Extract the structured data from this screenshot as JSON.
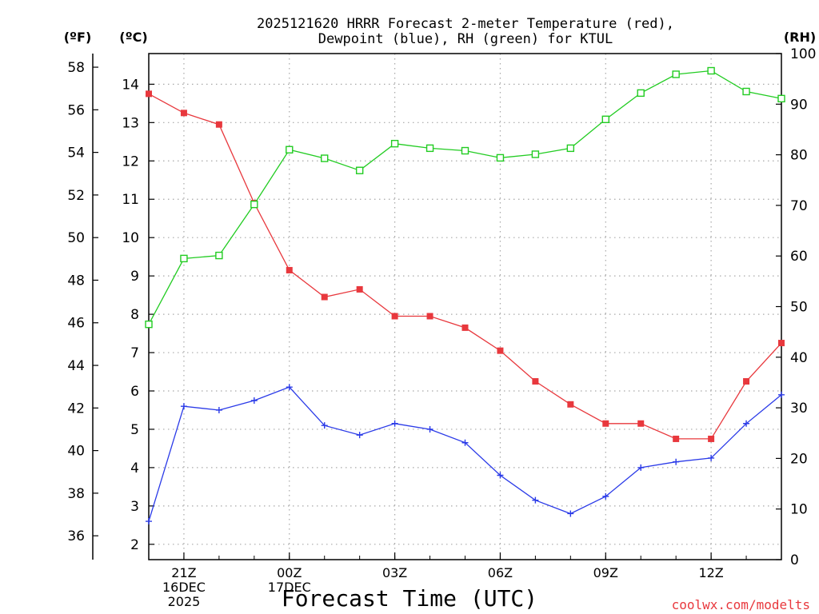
{
  "chart_data": {
    "type": "line",
    "title_line1": "2025121620 HRRR Forecast 2-meter Temperature (red),",
    "title_line2": "Dewpoint (blue), RH (green) for KTUL",
    "xlabel": "Forecast Time (UTC)",
    "credit": "coolwx.com/modelts",
    "units": {
      "fahrenheit": "(ºF)",
      "celsius": "(ºC)",
      "rh": "(RH)"
    },
    "x": [
      20,
      21,
      22,
      23,
      24,
      25,
      26,
      27,
      28,
      29,
      30,
      31,
      32,
      33,
      34,
      35,
      36,
      37,
      38
    ],
    "xlim": [
      20,
      38
    ],
    "x_ticks": [
      {
        "x": 21,
        "lines": [
          "21Z",
          "16DEC",
          "2025"
        ]
      },
      {
        "x": 24,
        "lines": [
          "00Z",
          "17DEC"
        ]
      },
      {
        "x": 27,
        "lines": [
          "03Z"
        ]
      },
      {
        "x": 30,
        "lines": [
          "06Z"
        ]
      },
      {
        "x": 33,
        "lines": [
          "09Z"
        ]
      },
      {
        "x": 36,
        "lines": [
          "12Z"
        ]
      }
    ],
    "celsius_axis": {
      "ylim": [
        1.6,
        14.8
      ],
      "ticks": [
        2,
        3,
        4,
        5,
        6,
        7,
        8,
        9,
        10,
        11,
        12,
        13,
        14
      ]
    },
    "fahrenheit_ticks": [
      36,
      38,
      40,
      42,
      44,
      46,
      48,
      50,
      52,
      54,
      56,
      58
    ],
    "rh_axis": {
      "ylim": [
        0,
        100
      ],
      "ticks": [
        0,
        10,
        20,
        30,
        40,
        50,
        60,
        70,
        80,
        90,
        100
      ]
    },
    "series": [
      {
        "name": "2-meter Temperature",
        "axis": "celsius",
        "color": "#e8383d",
        "marker": "filled-square",
        "values": [
          13.75,
          13.25,
          12.95,
          10.9,
          9.15,
          8.45,
          8.65,
          7.95,
          7.95,
          7.65,
          7.05,
          6.25,
          5.65,
          5.15,
          5.15,
          4.75,
          4.75,
          6.25,
          7.25
        ]
      },
      {
        "name": "Dewpoint",
        "axis": "celsius",
        "color": "#2a3ae8",
        "marker": "plus",
        "values": [
          2.6,
          5.6,
          5.5,
          5.75,
          6.1,
          5.1,
          4.85,
          5.15,
          5.0,
          4.65,
          3.8,
          3.15,
          2.8,
          3.25,
          4.0,
          4.15,
          4.25,
          5.15,
          5.9
        ]
      },
      {
        "name": "Relative Humidity",
        "axis": "rh",
        "color": "#22cc22",
        "marker": "open-square",
        "values": [
          46.5,
          59.5,
          60.1,
          70.2,
          81.0,
          79.3,
          76.9,
          82.2,
          81.3,
          80.8,
          79.4,
          80.1,
          81.3,
          87.0,
          92.2,
          95.9,
          96.6,
          92.5,
          91.1
        ]
      }
    ],
    "grid": true
  }
}
